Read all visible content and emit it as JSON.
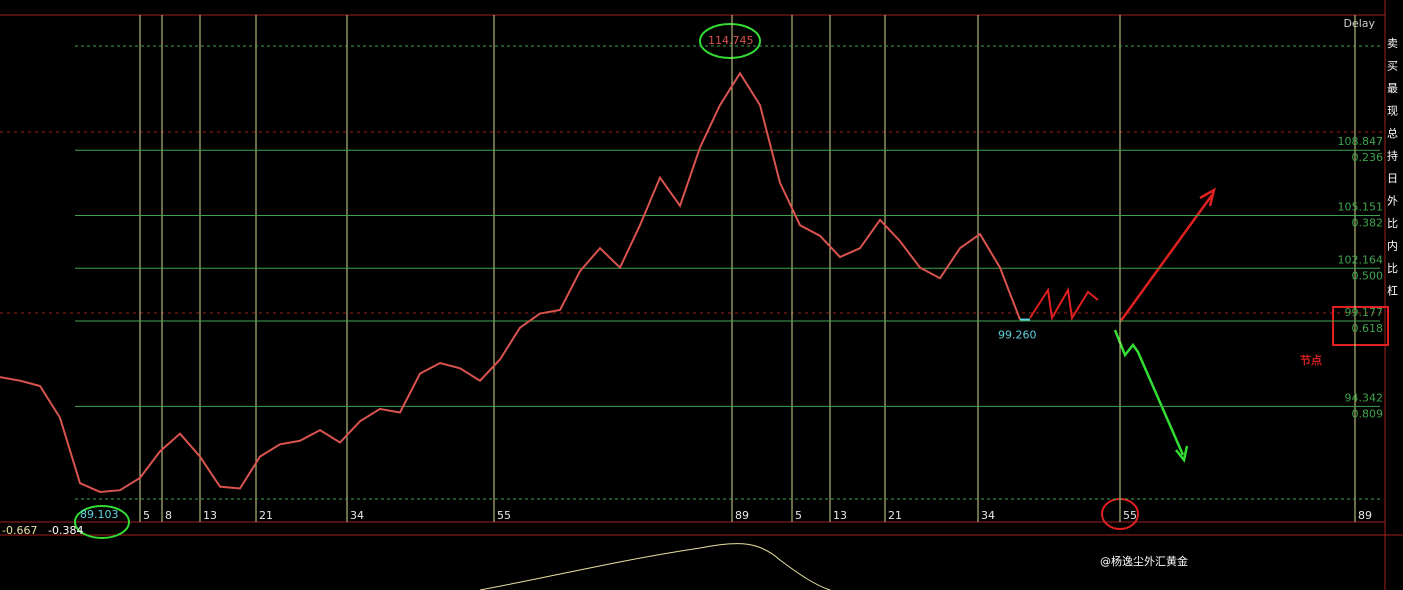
{
  "chart_data": {
    "type": "line",
    "status": "Delay",
    "x": [
      0,
      1,
      2,
      3,
      4,
      5,
      6,
      7,
      8,
      9,
      10,
      11,
      12,
      13,
      14,
      15,
      16,
      17,
      18,
      19,
      20,
      21,
      22,
      23,
      24,
      25,
      26,
      27,
      28,
      29,
      30,
      31,
      32,
      33,
      34,
      35,
      36,
      37,
      38,
      39,
      40,
      41,
      42,
      43,
      44,
      45,
      46,
      47,
      48,
      49,
      50,
      51
    ],
    "series": [
      {
        "color": "#d9534f",
        "values": [
          96.0,
          95.8,
          95.5,
          93.7,
          90.0,
          89.5,
          89.6,
          90.3,
          91.8,
          92.8,
          91.5,
          89.8,
          89.7,
          91.5,
          92.2,
          92.4,
          93.0,
          92.3,
          93.5,
          94.2,
          94.0,
          96.2,
          96.8,
          96.5,
          95.8,
          97.0,
          98.8,
          99.6,
          99.8,
          102.0,
          103.3,
          102.2,
          104.6,
          107.3,
          105.7,
          109.0,
          111.4,
          113.2,
          111.4,
          107.0,
          104.6,
          104.0,
          102.8,
          103.3,
          104.9,
          103.7,
          102.2,
          101.6,
          103.3,
          104.1,
          102.2,
          99.26
        ]
      }
    ],
    "xlim": [
      0,
      69
    ],
    "ylim": [
      87.8,
      116.5
    ],
    "fib_color": "#3fa34d",
    "fib_levels": [
      {
        "price": 108.847,
        "ratio": 0.236
      },
      {
        "price": 105.151,
        "ratio": 0.382
      },
      {
        "price": 102.164,
        "ratio": {
          "value": 0.5,
          "label": "0.500"
        }
      },
      {
        "price": 99.177,
        "ratio": 0.618
      },
      {
        "price": 94.342,
        "ratio": 0.809
      }
    ],
    "high": 114.745,
    "low": 89.103,
    "last": {
      "value": 99.26,
      "label": "99.260"
    },
    "time_zones": [
      {
        "value": 7,
        "label": "5"
      },
      {
        "value": 8.1,
        "label": "8"
      },
      {
        "value": 10,
        "label": "13"
      },
      {
        "value": 12.8,
        "label": "21"
      },
      {
        "value": 17.35,
        "label": "34"
      },
      {
        "value": 24.7,
        "label": "55"
      },
      {
        "value": 36.6,
        "label": "89"
      },
      {
        "value": 39.6,
        "label": "5"
      },
      {
        "value": 41.5,
        "label": "13"
      },
      {
        "value": 44.25,
        "label": "21"
      },
      {
        "value": 48.9,
        "label": "34"
      },
      {
        "value": 56,
        "label": "55"
      },
      {
        "value": 67.75,
        "label": "89"
      }
    ],
    "indicator_labels": [
      -0.667,
      -0.384
    ],
    "note": "节点",
    "watermark": "@杨逸尘外汇黄金",
    "side_panel": [
      "卖",
      "买",
      "最",
      "现",
      "总",
      "持",
      "日",
      "外",
      "比",
      "内",
      "比",
      "杠"
    ]
  }
}
